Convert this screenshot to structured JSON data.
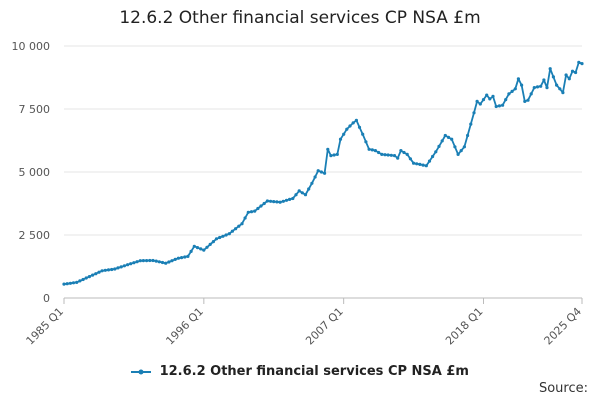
{
  "chart_data": {
    "type": "line",
    "title": "12.6.2 Other financial services CP NSA £m",
    "xlabel": "",
    "ylabel": "",
    "x_start": "1985 Q1",
    "x_end": "2025 Q4",
    "x_tick_labels": [
      "1985 Q1",
      "1996 Q1",
      "2007 Q1",
      "2018 Q1",
      "2025 Q4"
    ],
    "y_ticks": [
      0,
      2500,
      5000,
      7500,
      10000
    ],
    "y_tick_labels": [
      "0",
      "2 500",
      "5 000",
      "7 500",
      "10 000"
    ],
    "ylim": [
      0,
      10000
    ],
    "grid": true,
    "legend_position": "bottom",
    "series": [
      {
        "name": "12.6.2 Other financial services CP NSA £m",
        "color": "#1a7fb5",
        "anchors": [
          [
            "1985 Q1",
            550
          ],
          [
            "1986 Q1",
            620
          ],
          [
            "1987 Q1",
            850
          ],
          [
            "1988 Q1",
            1080
          ],
          [
            "1989 Q1",
            1150
          ],
          [
            "1990 Q1",
            1320
          ],
          [
            "1991 Q1",
            1480
          ],
          [
            "1992 Q1",
            1490
          ],
          [
            "1993 Q1",
            1380
          ],
          [
            "1994 Q1",
            1580
          ],
          [
            "1994 Q4",
            1650
          ],
          [
            "1995 Q2",
            2050
          ],
          [
            "1996 Q1",
            1900
          ],
          [
            "1997 Q1",
            2350
          ],
          [
            "1998 Q1",
            2550
          ],
          [
            "1999 Q1",
            2950
          ],
          [
            "1999 Q3",
            3400
          ],
          [
            "2000 Q1",
            3450
          ],
          [
            "2001 Q1",
            3850
          ],
          [
            "2002 Q1",
            3800
          ],
          [
            "2003 Q1",
            3950
          ],
          [
            "2003 Q3",
            4250
          ],
          [
            "2004 Q1",
            4100
          ],
          [
            "2004 Q3",
            4550
          ],
          [
            "2005 Q1",
            5050
          ],
          [
            "2005 Q3",
            4950
          ],
          [
            "2005 Q4",
            5900
          ],
          [
            "2006 Q1",
            5650
          ],
          [
            "2006 Q3",
            5700
          ],
          [
            "2006 Q4",
            6300
          ],
          [
            "2007 Q2",
            6700
          ],
          [
            "2007 Q4",
            6950
          ],
          [
            "2008 Q1",
            7050
          ],
          [
            "2008 Q3",
            6500
          ],
          [
            "2009 Q1",
            5900
          ],
          [
            "2009 Q3",
            5850
          ],
          [
            "2010 Q1",
            5700
          ],
          [
            "2011 Q1",
            5650
          ],
          [
            "2011 Q2",
            5550
          ],
          [
            "2011 Q3",
            5850
          ],
          [
            "2012 Q1",
            5700
          ],
          [
            "2012 Q3",
            5350
          ],
          [
            "2013 Q1",
            5300
          ],
          [
            "2013 Q3",
            5250
          ],
          [
            "2014 Q2",
            5800
          ],
          [
            "2015 Q1",
            6450
          ],
          [
            "2015 Q3",
            6300
          ],
          [
            "2016 Q1",
            5700
          ],
          [
            "2016 Q3",
            6000
          ],
          [
            "2017 Q1",
            6900
          ],
          [
            "2017 Q3",
            7800
          ],
          [
            "2017 Q4",
            7700
          ],
          [
            "2018 Q2",
            8050
          ],
          [
            "2018 Q3",
            7900
          ],
          [
            "2018 Q4",
            8000
          ],
          [
            "2019 Q1",
            7600
          ],
          [
            "2019 Q3",
            7650
          ],
          [
            "2020 Q1",
            8100
          ],
          [
            "2020 Q3",
            8300
          ],
          [
            "2020 Q4",
            8700
          ],
          [
            "2021 Q1",
            8450
          ],
          [
            "2021 Q2",
            7800
          ],
          [
            "2021 Q3",
            7850
          ],
          [
            "2022 Q1",
            8350
          ],
          [
            "2022 Q3",
            8400
          ],
          [
            "2022 Q4",
            8650
          ],
          [
            "2023 Q1",
            8350
          ],
          [
            "2023 Q2",
            9100
          ],
          [
            "2023 Q4",
            8450
          ],
          [
            "2024 Q1",
            8300
          ],
          [
            "2024 Q2",
            8150
          ],
          [
            "2024 Q3",
            8850
          ],
          [
            "2024 Q4",
            8700
          ],
          [
            "2025 Q1",
            9000
          ],
          [
            "2025 Q2",
            8950
          ],
          [
            "2025 Q3",
            9350
          ],
          [
            "2025 Q4",
            9300
          ]
        ]
      }
    ]
  },
  "source": {
    "label": "Source:"
  }
}
